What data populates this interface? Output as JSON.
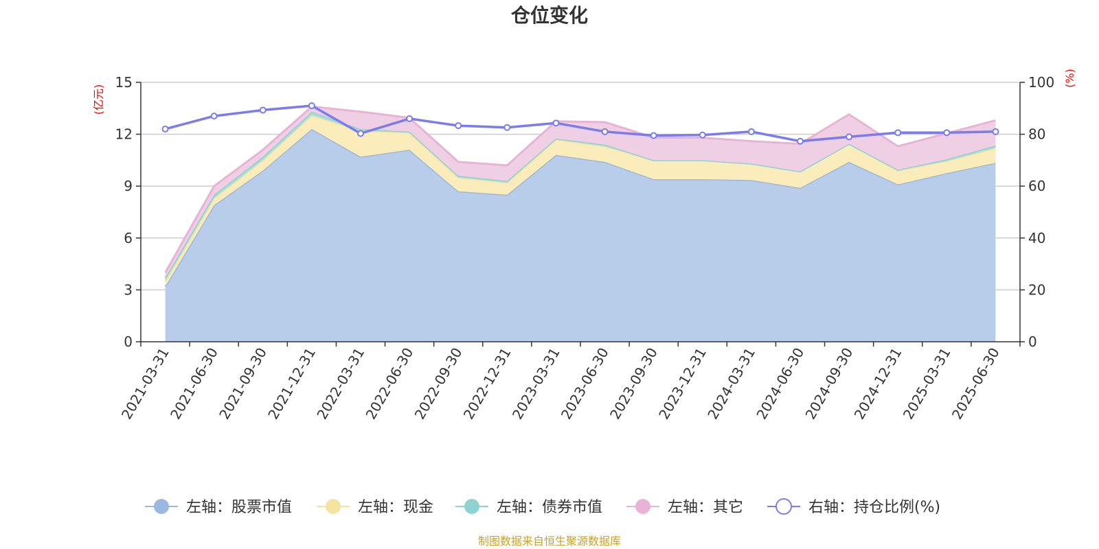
{
  "chart_data": {
    "type": "area",
    "title": "仓位变化",
    "left_axis_unit": "(亿元)",
    "right_axis_unit": "(%)",
    "categories": [
      "2021-03-31",
      "2021-06-30",
      "2021-09-30",
      "2021-12-31",
      "2022-03-31",
      "2022-06-30",
      "2022-09-30",
      "2022-12-31",
      "2023-03-31",
      "2023-06-30",
      "2023-09-30",
      "2023-12-31",
      "2024-03-31",
      "2024-06-30",
      "2024-09-30",
      "2024-12-31",
      "2025-03-31",
      "2025-06-30"
    ],
    "left_ylim": [
      0,
      15
    ],
    "left_ticks": [
      "0",
      "3",
      "6",
      "9",
      "12",
      "15"
    ],
    "right_ylim": [
      0,
      100
    ],
    "right_ticks": [
      "0",
      "20",
      "40",
      "60",
      "80",
      "100"
    ],
    "grid": true,
    "legend_position": "bottom",
    "series": [
      {
        "name": "左轴：股票市值",
        "axis": "left",
        "kind": "stacked-area",
        "color": "#9db8e0",
        "fill": "#b8cdea",
        "values": [
          3.2,
          7.9,
          9.9,
          12.3,
          10.7,
          11.1,
          8.7,
          8.5,
          10.8,
          10.4,
          9.4,
          9.4,
          9.35,
          8.9,
          10.4,
          9.1,
          9.75,
          10.35
        ]
      },
      {
        "name": "左轴：现金",
        "axis": "left",
        "kind": "stacked-area",
        "color": "#f7e3a0",
        "fill": "#faecbb",
        "values": [
          0.3,
          0.4,
          0.6,
          0.8,
          1.5,
          1.0,
          0.8,
          0.7,
          0.9,
          0.9,
          1.1,
          1.1,
          0.95,
          0.95,
          1.05,
          0.8,
          0.7,
          0.85
        ]
      },
      {
        "name": "左轴：债券市值",
        "axis": "left",
        "kind": "stacked-area",
        "color": "#8fd3d0",
        "fill": "#a9ddd9",
        "values": [
          0.2,
          0.2,
          0.2,
          0.2,
          0.1,
          0.05,
          0.1,
          0.1,
          0.05,
          0.1,
          0.0,
          0.0,
          0.0,
          0.0,
          0.0,
          0.05,
          0.1,
          0.15
        ]
      },
      {
        "name": "左轴：其它",
        "axis": "left",
        "kind": "stacked-area",
        "color": "#e8b3d6",
        "fill": "#eecfe3",
        "values": [
          0.3,
          0.5,
          0.4,
          0.3,
          1.0,
          0.8,
          0.8,
          0.9,
          1.0,
          1.3,
          1.3,
          1.3,
          1.3,
          1.6,
          1.7,
          1.35,
          1.5,
          1.45
        ]
      },
      {
        "name": "右轴：持仓比例(%)",
        "axis": "right",
        "kind": "line",
        "color": "#7b7bf0",
        "values": [
          82.0,
          87.0,
          89.3,
          91.0,
          80.3,
          86.0,
          83.3,
          82.6,
          84.3,
          81.0,
          79.5,
          79.7,
          81.0,
          77.3,
          79.0,
          80.6,
          80.6,
          81.0
        ]
      }
    ]
  },
  "source_note": "制图数据来自恒生聚源数据库"
}
